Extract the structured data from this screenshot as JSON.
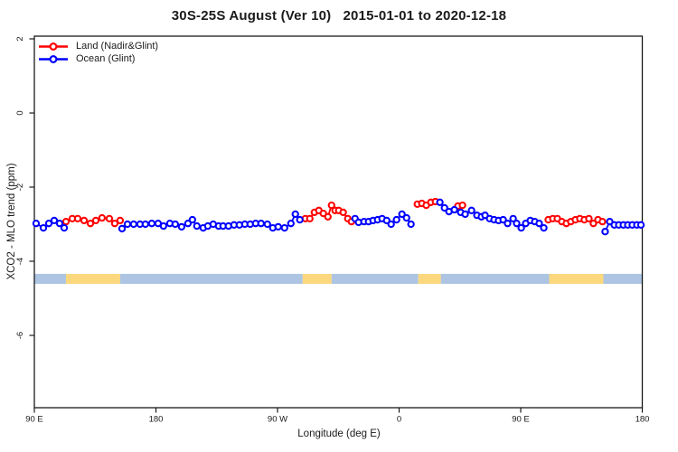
{
  "chart_data": {
    "type": "line",
    "title": "30S-25S August (Ver 10)   2015-01-01 to 2020-12-18",
    "xlabel": "Longitude (deg E)",
    "ylabel": "XCO2 - MLO trend (ppm)",
    "x_range_deg_offset": [
      0,
      450
    ],
    "y_range": [
      -7.95,
      2.07
    ],
    "grid": "off",
    "axis_color": "#1a1a1a",
    "x_ticks": [
      {
        "pos": 0,
        "label": "90 E"
      },
      {
        "pos": 90,
        "label": "180"
      },
      {
        "pos": 180,
        "label": "90 W"
      },
      {
        "pos": 270,
        "label": "0"
      },
      {
        "pos": 360,
        "label": "90 E"
      },
      {
        "pos": 450,
        "label": "180"
      }
    ],
    "y_ticks": [
      {
        "value": 2,
        "label": "2"
      },
      {
        "value": 0,
        "label": "0"
      },
      {
        "value": -2,
        "label": "-2"
      },
      {
        "value": -4,
        "label": "-4"
      },
      {
        "value": -6,
        "label": "-6"
      }
    ],
    "legend": {
      "position": "top-left",
      "entries": [
        {
          "label": "Land (Nadir&Glint)",
          "series": 0
        },
        {
          "label": "Ocean (Glint)",
          "series": 1
        }
      ]
    },
    "land_ocean_band": {
      "y_top": -4.34,
      "y_bottom": -4.61,
      "colors": {
        "ocean": "#ADC5E2",
        "land": "#FBD87E"
      },
      "segments": [
        {
          "type": "ocean",
          "from": 0,
          "to": 23.4
        },
        {
          "type": "land",
          "from": 23.4,
          "to": 63.5
        },
        {
          "type": "ocean",
          "from": 63.5,
          "to": 198.6
        },
        {
          "type": "land",
          "from": 198.6,
          "to": 220.0
        },
        {
          "type": "ocean",
          "from": 220.0,
          "to": 284.2
        },
        {
          "type": "land",
          "from": 284.2,
          "to": 300.9
        },
        {
          "type": "ocean",
          "from": 300.9,
          "to": 381.1
        },
        {
          "type": "land",
          "from": 381.1,
          "to": 421.2
        },
        {
          "type": "ocean",
          "from": 421.2,
          "to": 450
        }
      ]
    },
    "series": [
      {
        "name": "Land (Nadir&Glint)",
        "color": "#FF0000",
        "marker": "open-circle",
        "segments": [
          [
            [
              23.4,
              -2.93
            ],
            [
              28.1,
              -2.85
            ],
            [
              32.1,
              -2.85
            ],
            [
              36.8,
              -2.9
            ],
            [
              41.5,
              -2.98
            ],
            [
              45.5,
              -2.9
            ],
            [
              50.1,
              -2.83
            ],
            [
              55.5,
              -2.85
            ],
            [
              59.5,
              -2.98
            ],
            [
              63.5,
              -2.9
            ]
          ],
          [
            [
              200.6,
              -2.85
            ],
            [
              203.9,
              -2.85
            ],
            [
              207.3,
              -2.68
            ],
            [
              210.6,
              -2.63
            ],
            [
              213.9,
              -2.71
            ],
            [
              217.3,
              -2.8
            ],
            [
              220.0,
              -2.49
            ],
            [
              222.6,
              -2.63
            ],
            [
              225.3,
              -2.63
            ],
            [
              228.6,
              -2.68
            ],
            [
              232.0,
              -2.85
            ],
            [
              234.7,
              -2.93
            ]
          ],
          [
            [
              283.5,
              -2.46
            ],
            [
              286.8,
              -2.44
            ],
            [
              290.1,
              -2.49
            ],
            [
              293.5,
              -2.41
            ],
            [
              296.9,
              -2.39
            ]
          ],
          [
            [
              313.5,
              -2.51
            ],
            [
              316.9,
              -2.49
            ]
          ],
          [
            [
              380.4,
              -2.88
            ],
            [
              383.8,
              -2.85
            ],
            [
              387.1,
              -2.85
            ],
            [
              390.4,
              -2.93
            ],
            [
              393.8,
              -2.98
            ],
            [
              397.1,
              -2.93
            ],
            [
              400.5,
              -2.88
            ],
            [
              403.8,
              -2.85
            ],
            [
              407.1,
              -2.88
            ],
            [
              410.5,
              -2.85
            ],
            [
              413.8,
              -2.98
            ],
            [
              417.2,
              -2.88
            ],
            [
              420.5,
              -2.93
            ]
          ]
        ]
      },
      {
        "name": "Ocean (Glint)",
        "color": "#0000FF",
        "marker": "open-circle",
        "segments": [
          [
            [
              1.3,
              -2.98
            ],
            [
              6.7,
              -3.1
            ],
            [
              10.7,
              -2.98
            ],
            [
              14.7,
              -2.9
            ],
            [
              18.7,
              -2.98
            ],
            [
              22.1,
              -3.1
            ]
          ],
          [
            [
              64.9,
              -3.12
            ],
            [
              68.9,
              -3.0
            ],
            [
              73.5,
              -3.0
            ],
            [
              78.2,
              -3.0
            ],
            [
              82.2,
              -3.0
            ],
            [
              86.9,
              -2.98
            ],
            [
              91.6,
              -2.98
            ],
            [
              95.6,
              -3.05
            ],
            [
              100.3,
              -2.98
            ],
            [
              104.3,
              -3.0
            ],
            [
              109.0,
              -3.07
            ],
            [
              113.7,
              -2.98
            ],
            [
              117.0,
              -2.88
            ],
            [
              120.3,
              -3.05
            ],
            [
              125.0,
              -3.1
            ],
            [
              128.4,
              -3.05
            ],
            [
              132.4,
              -3.0
            ],
            [
              136.4,
              -3.05
            ],
            [
              139.7,
              -3.05
            ],
            [
              143.7,
              -3.05
            ],
            [
              147.8,
              -3.02
            ],
            [
              151.8,
              -3.02
            ],
            [
              155.8,
              -3.0
            ],
            [
              159.8,
              -3.0
            ],
            [
              163.8,
              -2.98
            ],
            [
              167.8,
              -2.98
            ],
            [
              172.5,
              -3.0
            ],
            [
              176.5,
              -3.1
            ],
            [
              180.5,
              -3.07
            ],
            [
              185.2,
              -3.1
            ],
            [
              189.9,
              -2.98
            ],
            [
              193.2,
              -2.73
            ],
            [
              196.5,
              -2.88
            ]
          ],
          [
            [
              237.4,
              -2.85
            ],
            [
              240.0,
              -2.95
            ],
            [
              244.0,
              -2.93
            ],
            [
              247.4,
              -2.93
            ],
            [
              250.7,
              -2.9
            ],
            [
              254.1,
              -2.88
            ],
            [
              257.4,
              -2.85
            ],
            [
              260.8,
              -2.9
            ],
            [
              264.1,
              -3.0
            ],
            [
              268.1,
              -2.88
            ],
            [
              272.1,
              -2.73
            ],
            [
              275.5,
              -2.83
            ],
            [
              278.8,
              -3.0
            ]
          ],
          [
            [
              300.2,
              -2.41
            ],
            [
              303.6,
              -2.56
            ],
            [
              306.9,
              -2.66
            ],
            [
              310.9,
              -2.61
            ],
            [
              315.6,
              -2.68
            ],
            [
              318.9,
              -2.73
            ],
            [
              323.6,
              -2.63
            ],
            [
              327.6,
              -2.76
            ],
            [
              330.9,
              -2.8
            ],
            [
              333.6,
              -2.76
            ],
            [
              337.0,
              -2.85
            ],
            [
              340.3,
              -2.88
            ],
            [
              343.6,
              -2.9
            ],
            [
              347.0,
              -2.88
            ],
            [
              350.3,
              -2.98
            ],
            [
              354.4,
              -2.85
            ],
            [
              357.0,
              -2.98
            ],
            [
              360.4,
              -3.1
            ],
            [
              363.7,
              -2.98
            ],
            [
              367.1,
              -2.9
            ],
            [
              370.4,
              -2.93
            ],
            [
              373.7,
              -2.98
            ],
            [
              377.1,
              -3.1
            ]
          ],
          [
            [
              422.5,
              -3.2
            ],
            [
              425.9,
              -2.93
            ],
            [
              429.3,
              -3.02
            ],
            [
              432.6,
              -3.02
            ],
            [
              436.0,
              -3.02
            ],
            [
              439.3,
              -3.02
            ],
            [
              442.6,
              -3.02
            ],
            [
              446.0,
              -3.02
            ],
            [
              449.0,
              -3.02
            ]
          ]
        ]
      }
    ]
  }
}
